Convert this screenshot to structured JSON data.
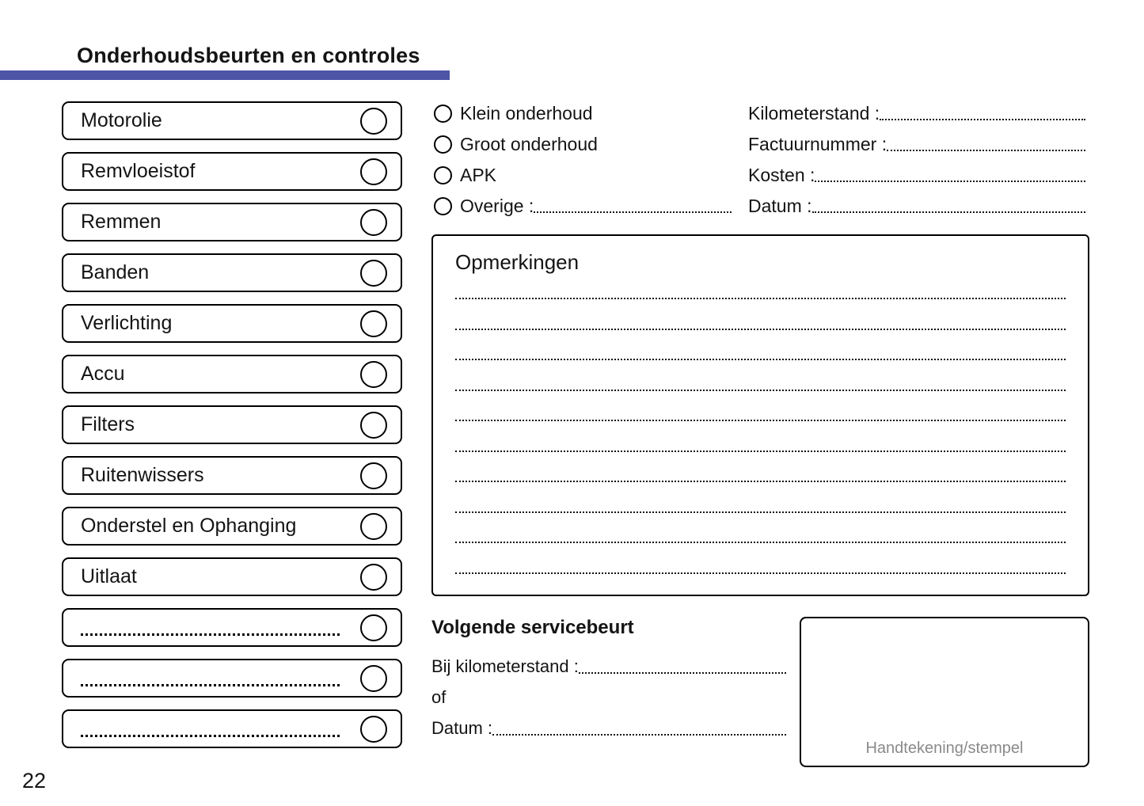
{
  "page": {
    "title": "Onderhoudsbeurten en controles",
    "number": "22"
  },
  "colors": {
    "accent_bar": "#4d55a6",
    "signature_gray": "#8a8a8a"
  },
  "checklist": {
    "items": [
      {
        "label": "Motorolie",
        "blank": false
      },
      {
        "label": "Remvloeistof",
        "blank": false
      },
      {
        "label": "Remmen",
        "blank": false
      },
      {
        "label": "Banden",
        "blank": false
      },
      {
        "label": "Verlichting",
        "blank": false
      },
      {
        "label": "Accu",
        "blank": false
      },
      {
        "label": "Filters",
        "blank": false
      },
      {
        "label": "Ruitenwissers",
        "blank": false
      },
      {
        "label": "Onderstel en Ophanging",
        "blank": false
      },
      {
        "label": "Uitlaat",
        "blank": false
      },
      {
        "label": "",
        "blank": true
      },
      {
        "label": "",
        "blank": true
      },
      {
        "label": "",
        "blank": true
      }
    ]
  },
  "service_types": {
    "options": [
      {
        "label": "Klein onderhoud",
        "has_fill_line": false
      },
      {
        "label": "Groot onderhoud",
        "has_fill_line": false
      },
      {
        "label": "APK",
        "has_fill_line": false
      },
      {
        "label": "Overige :",
        "has_fill_line": true
      }
    ]
  },
  "admin_fields": {
    "fields": [
      {
        "label": "Kilometerstand :"
      },
      {
        "label": "Factuurnummer :"
      },
      {
        "label": "Kosten :"
      },
      {
        "label": "Datum :"
      }
    ]
  },
  "remarks": {
    "title": "Opmerkingen",
    "blank_line_count": 10
  },
  "next_service": {
    "title": "Volgende servicebeurt",
    "rows": [
      {
        "label": "Bij kilometerstand :",
        "has_fill_line": true
      },
      {
        "label": "of",
        "has_fill_line": false
      },
      {
        "label": "Datum :",
        "has_fill_line": true
      }
    ]
  },
  "signature": {
    "label": "Handtekening/stempel"
  }
}
